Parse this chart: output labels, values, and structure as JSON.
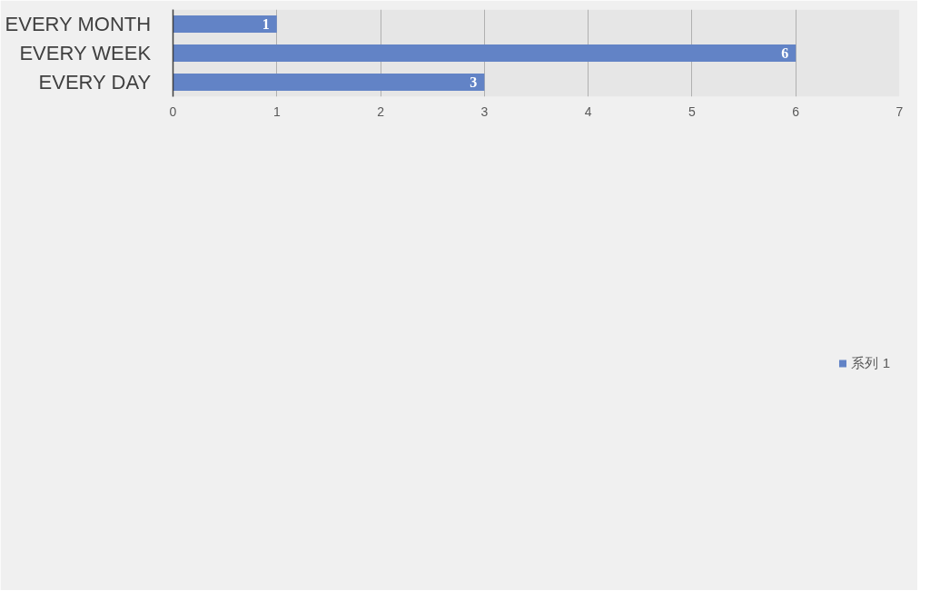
{
  "chart_data": {
    "type": "bar",
    "orientation": "horizontal",
    "categories": [
      "EVERY MONTH",
      "EVERY WEEK",
      "EVERY DAY"
    ],
    "series": [
      {
        "name": "系列 1",
        "color": "#6283c6",
        "values": [
          1,
          6,
          3
        ]
      }
    ],
    "xlim": [
      0,
      7
    ],
    "xticks": [
      0,
      1,
      2,
      3,
      4,
      5,
      6,
      7
    ],
    "grid": "x",
    "legend": "bottom",
    "data_labels": true
  }
}
